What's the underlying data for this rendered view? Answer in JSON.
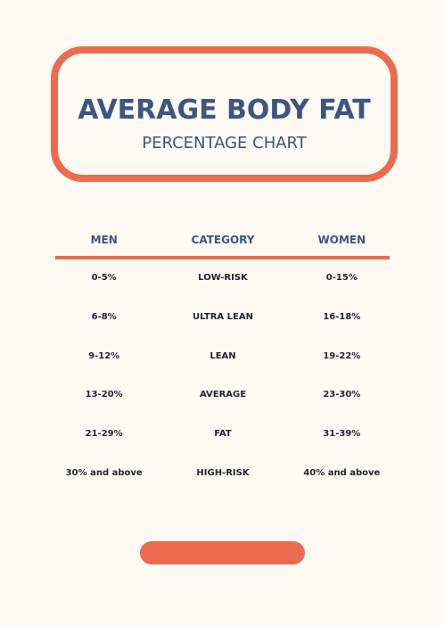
{
  "header": {
    "title": "AVERAGE BODY FAT",
    "subtitle": "PERCENTAGE CHART"
  },
  "table": {
    "columns": [
      "MEN",
      "CATEGORY",
      "WOMEN"
    ],
    "rows": [
      [
        "0-5%",
        "LOW-RISK",
        "0-15%"
      ],
      [
        "6-8%",
        "ULTRA LEAN",
        "16-18%"
      ],
      [
        "9-12%",
        "LEAN",
        "19-22%"
      ],
      [
        "13-20%",
        "AVERAGE",
        "23-30%"
      ],
      [
        "21-29%",
        "FAT",
        "31-39%"
      ],
      [
        "30% and above",
        "HIGH-RISK",
        "40% and above"
      ]
    ]
  }
}
